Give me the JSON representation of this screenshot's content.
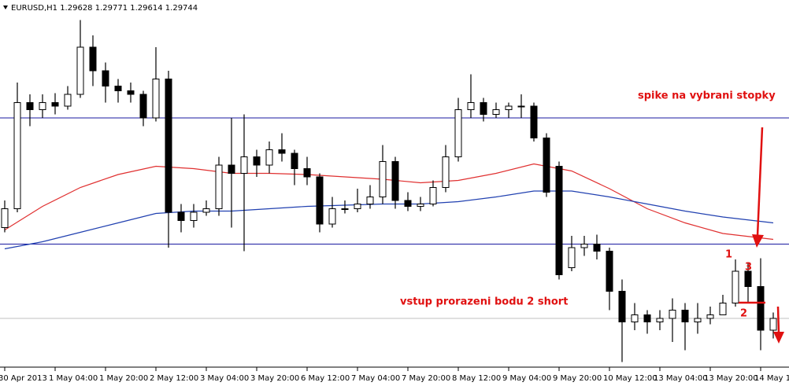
{
  "chart_data": {
    "type": "candlestick",
    "title": "EURUSD,H1  1.29628 1.29771 1.29614 1.29744",
    "categories": [
      "30 Apr 2013",
      null,
      null,
      null,
      "1 May 04:00",
      null,
      null,
      null,
      "1 May 20:00",
      null,
      null,
      null,
      "2 May 12:00",
      null,
      null,
      null,
      "3 May 04:00",
      null,
      null,
      null,
      "3 May 20:00",
      null,
      null,
      null,
      "6 May 12:00",
      null,
      null,
      null,
      "7 May 04:00",
      null,
      null,
      null,
      "7 May 20:00",
      null,
      null,
      null,
      "8 May 12:00",
      null,
      null,
      null,
      "9 May 04:00",
      null,
      null,
      null,
      "9 May 20:00",
      null,
      null,
      null,
      "10 May 12:00",
      null,
      null,
      null,
      "13 May 04:00",
      null,
      null,
      null,
      "13 May 20:00",
      null,
      null,
      null,
      "14 May 1",
      null
    ],
    "open": [
      1.3051,
      1.3067,
      1.3157,
      1.3151,
      1.3157,
      1.3154,
      1.3164,
      1.3204,
      1.3184,
      1.3171,
      1.3167,
      1.3164,
      1.3144,
      1.3177,
      1.3064,
      1.3057,
      1.3064,
      1.3067,
      1.3104,
      1.3097,
      1.3111,
      1.3104,
      1.3117,
      1.3114,
      1.3101,
      1.3094,
      1.3054,
      1.3067,
      1.3067,
      1.3071,
      1.3077,
      1.3107,
      1.3074,
      1.3069,
      1.3071,
      1.3085,
      1.3111,
      1.3151,
      1.3157,
      1.3147,
      1.3151,
      1.3154,
      1.3154,
      1.3127,
      1.3103,
      1.3017,
      1.3034,
      1.3037,
      1.3031,
      1.2997,
      1.2971,
      1.2977,
      1.2971,
      1.2974,
      1.2981,
      1.2971,
      1.2974,
      1.2977,
      1.2987,
      1.3014,
      1.3001,
      1.2964
    ],
    "high": [
      1.3074,
      1.3174,
      1.3164,
      1.3164,
      1.3165,
      1.3171,
      1.3227,
      1.3214,
      1.3191,
      1.3177,
      1.3174,
      1.3167,
      1.3204,
      1.3184,
      1.3071,
      1.3071,
      1.3074,
      1.3111,
      1.3144,
      1.3147,
      1.3117,
      1.3124,
      1.3131,
      1.3117,
      1.3111,
      1.3097,
      1.3077,
      1.3074,
      1.3084,
      1.3087,
      1.3121,
      1.3111,
      1.3081,
      1.3077,
      1.3091,
      1.3121,
      1.3161,
      1.3181,
      1.3161,
      1.3157,
      1.3157,
      1.3164,
      1.3157,
      1.3131,
      1.3107,
      1.3044,
      1.3044,
      1.3045,
      1.3034,
      1.3007,
      1.2987,
      1.2981,
      1.2981,
      1.2991,
      1.2987,
      1.2987,
      1.2984,
      1.2994,
      1.3024,
      1.3021,
      1.3025,
      1.2979
    ],
    "low": [
      1.3047,
      1.3064,
      1.3137,
      1.3144,
      1.3147,
      1.3151,
      1.3161,
      1.3171,
      1.3157,
      1.3157,
      1.3157,
      1.3137,
      1.3141,
      1.3034,
      1.3047,
      1.3051,
      1.3061,
      1.3061,
      1.3051,
      1.3031,
      1.3094,
      1.3097,
      1.3107,
      1.3087,
      1.3087,
      1.3047,
      1.3051,
      1.3063,
      1.3064,
      1.3067,
      1.3071,
      1.3067,
      1.3065,
      1.3065,
      1.3069,
      1.3081,
      1.3107,
      1.3144,
      1.3141,
      1.3144,
      1.3144,
      1.3144,
      1.3124,
      1.3077,
      1.3007,
      1.3014,
      1.3027,
      1.3024,
      1.2981,
      1.2937,
      1.2964,
      1.2961,
      1.2964,
      1.2954,
      1.2947,
      1.2961,
      1.2969,
      1.2977,
      1.2984,
      1.2987,
      1.2947,
      1.2957
    ],
    "close": [
      1.3067,
      1.3157,
      1.3151,
      1.3157,
      1.3154,
      1.3164,
      1.3204,
      1.3184,
      1.3171,
      1.3167,
      1.3164,
      1.3144,
      1.3177,
      1.3064,
      1.3057,
      1.3064,
      1.3067,
      1.3104,
      1.3097,
      1.3111,
      1.3104,
      1.3117,
      1.3114,
      1.3101,
      1.3094,
      1.3054,
      1.3067,
      1.3067,
      1.3071,
      1.3077,
      1.3107,
      1.3074,
      1.3069,
      1.3071,
      1.3085,
      1.3111,
      1.3151,
      1.3157,
      1.3147,
      1.3151,
      1.3154,
      1.3154,
      1.3127,
      1.3081,
      1.3011,
      1.3034,
      1.3037,
      1.3031,
      1.2997,
      1.2971,
      1.2977,
      1.2971,
      1.2974,
      1.2981,
      1.2971,
      1.2974,
      1.2977,
      1.2987,
      1.3014,
      1.3001,
      1.2964,
      1.2974
    ],
    "up_color": "#ffffff",
    "down_color": "#000000",
    "ylim": [
      1.2934,
      1.3244
    ],
    "hlines": [
      1.3144,
      1.3037
    ],
    "hline_color": "#1a1aa0",
    "lines": [
      {
        "color": "#e03030",
        "x": [
          0,
          3,
          6,
          9,
          12,
          15,
          18,
          21,
          24,
          27,
          30,
          33,
          36,
          39,
          42,
          45,
          48,
          51,
          54,
          57,
          61
        ],
        "values": [
          1.3049,
          1.3069,
          1.3085,
          1.3096,
          1.3103,
          1.3101,
          1.3097,
          1.3097,
          1.3096,
          1.3094,
          1.3092,
          1.3089,
          1.3091,
          1.3097,
          1.3105,
          1.3099,
          1.3084,
          1.3067,
          1.3055,
          1.3046,
          1.3041
        ]
      },
      {
        "color": "#2040b0",
        "x": [
          0,
          3,
          6,
          9,
          12,
          15,
          18,
          21,
          24,
          27,
          30,
          33,
          36,
          39,
          42,
          45,
          48,
          51,
          54,
          57,
          61
        ],
        "values": [
          1.3033,
          1.3039,
          1.3047,
          1.3055,
          1.3063,
          1.3065,
          1.3065,
          1.3067,
          1.3069,
          1.307,
          1.3071,
          1.3071,
          1.3073,
          1.3077,
          1.3082,
          1.3082,
          1.3077,
          1.3071,
          1.3065,
          1.306,
          1.3055
        ]
      }
    ],
    "annotations": [
      "spike na vybrani stopky",
      "vstup prorazeni bodu 2 short",
      "1",
      "3",
      "2"
    ],
    "annotation_color": "#e01010"
  }
}
